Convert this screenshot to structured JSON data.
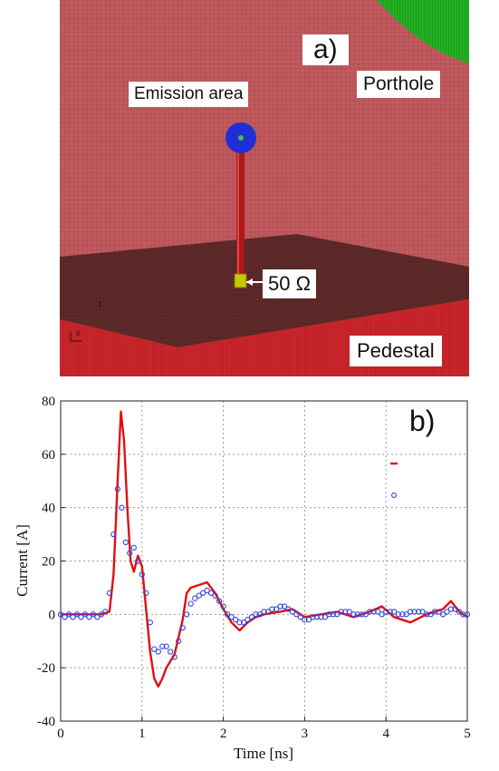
{
  "panel_a": {
    "letter": "a)",
    "labels": {
      "emission": "Emission area",
      "porthole": "Porthole",
      "resistor": "50 Ω",
      "pedestal": "Pedestal"
    },
    "axis_glyphs": {
      "z": "z",
      "x": "x"
    },
    "colors": {
      "wall": "#c05a5e",
      "pedestal_top": "#5e2a2a",
      "pedestal_front": "#c8252a",
      "porthole": "#23b023",
      "emitter": "#1f2fd8",
      "rod": "#b01818",
      "resistor": "#c8c800"
    }
  },
  "chart_data": {
    "type": "line",
    "letter": "b)",
    "xlabel": "Time [ns]",
    "ylabel": "Current [A]",
    "xlim": [
      0,
      5
    ],
    "ylim": [
      -40,
      80
    ],
    "xticks": [
      0,
      1,
      2,
      3,
      4,
      5
    ],
    "yticks": [
      -40,
      -20,
      0,
      20,
      40,
      60,
      80
    ],
    "grid": true,
    "legend_placement": "top-right",
    "legend_entries": [
      "",
      ""
    ],
    "series": [
      {
        "style": "solid-line",
        "color": "#e01010",
        "x": [
          0.0,
          0.5,
          0.6,
          0.65,
          0.7,
          0.74,
          0.78,
          0.82,
          0.86,
          0.9,
          0.95,
          1.0,
          1.05,
          1.1,
          1.15,
          1.2,
          1.25,
          1.3,
          1.4,
          1.5,
          1.55,
          1.6,
          1.7,
          1.8,
          1.9,
          2.0,
          2.1,
          2.2,
          2.3,
          2.4,
          2.5,
          2.7,
          2.85,
          3.0,
          3.2,
          3.4,
          3.6,
          3.8,
          3.95,
          4.1,
          4.3,
          4.5,
          4.7,
          4.8,
          4.9,
          5.0
        ],
        "y": [
          0,
          0,
          1,
          15,
          50,
          76,
          65,
          40,
          20,
          16,
          22,
          18,
          2,
          -14,
          -24,
          -27,
          -24,
          -20,
          -15,
          -2,
          8,
          10,
          11,
          12,
          8,
          2,
          -3,
          -6,
          -3,
          -1,
          0,
          1,
          2,
          -1,
          0,
          1,
          -1,
          1,
          3,
          -1,
          -3,
          0,
          2,
          5,
          1,
          -1
        ]
      },
      {
        "style": "circle-markers",
        "color": "#3344dd",
        "x": [
          0.0,
          0.05,
          0.1,
          0.15,
          0.2,
          0.25,
          0.3,
          0.35,
          0.4,
          0.45,
          0.5,
          0.55,
          0.6,
          0.65,
          0.7,
          0.75,
          0.8,
          0.85,
          0.9,
          0.95,
          1.0,
          1.05,
          1.1,
          1.15,
          1.2,
          1.25,
          1.3,
          1.35,
          1.4,
          1.45,
          1.5,
          1.55,
          1.6,
          1.65,
          1.7,
          1.75,
          1.8,
          1.85,
          1.9,
          1.95,
          2.0,
          2.05,
          2.1,
          2.15,
          2.2,
          2.25,
          2.3,
          2.35,
          2.4,
          2.45,
          2.5,
          2.55,
          2.6,
          2.65,
          2.7,
          2.75,
          2.8,
          2.85,
          2.9,
          2.95,
          3.0,
          3.05,
          3.1,
          3.15,
          3.2,
          3.25,
          3.3,
          3.35,
          3.4,
          3.45,
          3.5,
          3.55,
          3.6,
          3.65,
          3.7,
          3.75,
          3.8,
          3.85,
          3.9,
          3.95,
          4.0,
          4.05,
          4.1,
          4.15,
          4.2,
          4.25,
          4.3,
          4.35,
          4.4,
          4.45,
          4.5,
          4.55,
          4.6,
          4.65,
          4.7,
          4.75,
          4.8,
          4.85,
          4.9,
          4.95,
          5.0
        ],
        "y": [
          0,
          -1,
          0,
          -1,
          0,
          -1,
          0,
          -1,
          0,
          -1,
          0,
          1,
          8,
          30,
          47,
          40,
          27,
          23,
          25,
          20,
          15,
          8,
          -3,
          -13,
          -14,
          -12,
          -12,
          -14,
          -16,
          -10,
          -5,
          0,
          4,
          6,
          7,
          8,
          9,
          8,
          7,
          5,
          3,
          0,
          -1,
          -2,
          -3,
          -3,
          -2,
          -1,
          0,
          0,
          1,
          1,
          2,
          2,
          3,
          3,
          2,
          1,
          0,
          -1,
          -2,
          -2,
          -1,
          -1,
          -1,
          -1,
          0,
          0,
          0,
          1,
          1,
          1,
          0,
          0,
          0,
          0,
          1,
          1,
          1,
          0,
          1,
          1,
          1,
          0,
          0,
          0,
          1,
          1,
          1,
          1,
          0,
          0,
          1,
          1,
          0,
          1,
          2,
          2,
          1,
          0,
          0
        ]
      }
    ]
  }
}
